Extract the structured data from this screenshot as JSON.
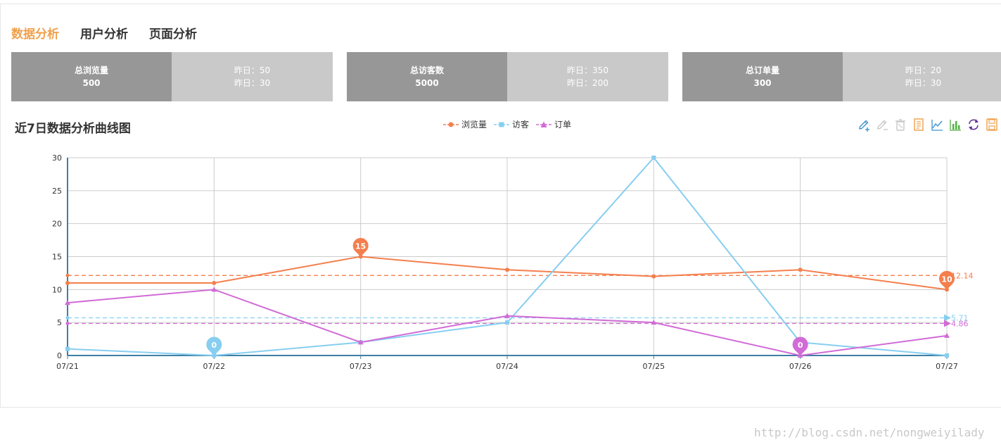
{
  "tabs": [
    {
      "label": "数据分析",
      "active": true
    },
    {
      "label": "用户分析",
      "active": false
    },
    {
      "label": "页面分析",
      "active": false
    }
  ],
  "stats": [
    {
      "title": "总浏览量",
      "value": "500",
      "line1": "昨日：50",
      "line2": "昨日：30"
    },
    {
      "title": "总访客数",
      "value": "5000",
      "line1": "昨日：350",
      "line2": "昨日：200"
    },
    {
      "title": "总订单量",
      "value": "300",
      "line1": "昨日：20",
      "line2": "昨日：30"
    }
  ],
  "chart_heading": "近7日数据分析曲线图",
  "toolbox": [
    "mark-pen-icon",
    "mark-undo-icon",
    "mark-clear-icon",
    "data-view-icon",
    "line-chart-icon",
    "bar-chart-icon",
    "restore-icon",
    "save-image-icon"
  ],
  "watermark": "http://blog.csdn.net/nongweiyilady",
  "chart_data": {
    "type": "line",
    "x": [
      "07/21",
      "07/22",
      "07/23",
      "07/24",
      "07/25",
      "07/26",
      "07/27"
    ],
    "ylim": [
      0,
      30
    ],
    "yticks": [
      0,
      5,
      10,
      15,
      20,
      25,
      30
    ],
    "grid": true,
    "legend_position": "top-center",
    "series": [
      {
        "name": "浏览量",
        "color": "#f47f4d",
        "marker": "circle",
        "values": [
          11,
          11,
          15,
          13,
          12,
          13,
          10
        ],
        "max": {
          "index": 2,
          "label": "15"
        },
        "min": {
          "index": 6,
          "label": "10"
        },
        "mean": {
          "value": 12.14,
          "label": "12.14"
        }
      },
      {
        "name": "访客",
        "color": "#87cef0",
        "marker": "square",
        "values": [
          1,
          0,
          2,
          5,
          30,
          2,
          0
        ],
        "max": null,
        "min": {
          "index": 1,
          "label": "0"
        },
        "mean": {
          "value": 5.71,
          "label": "5.71"
        }
      },
      {
        "name": "订单",
        "color": "#d16bd6",
        "marker": "triangle",
        "values": [
          8,
          10,
          2,
          6,
          5,
          0,
          3
        ],
        "max": null,
        "min": {
          "index": 5,
          "label": "0"
        },
        "mean": {
          "value": 4.86,
          "label": "4.86"
        }
      }
    ]
  }
}
